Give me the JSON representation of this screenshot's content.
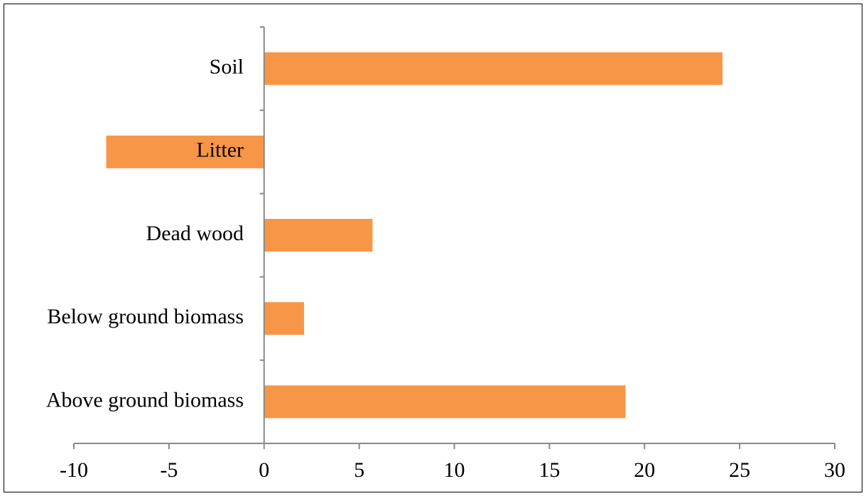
{
  "chart_data": {
    "type": "bar",
    "orientation": "horizontal",
    "categories": [
      "Soil",
      "Litter",
      "Dead wood",
      "Below ground biomass",
      "Above ground biomass"
    ],
    "values": [
      24.1,
      -8.3,
      5.7,
      2.1,
      19.0
    ],
    "color": "#f79646",
    "xlim": [
      -10,
      30
    ],
    "xticks": [
      -10,
      -5,
      0,
      5,
      10,
      15,
      20,
      25,
      30
    ]
  }
}
